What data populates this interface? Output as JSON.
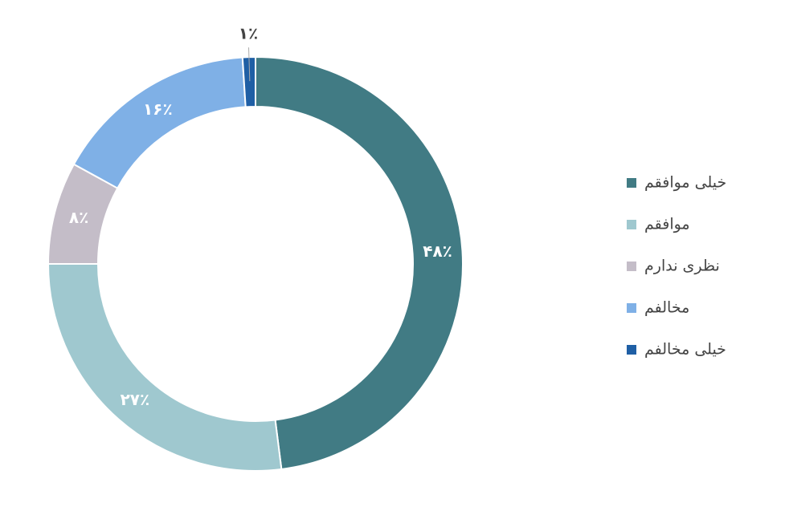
{
  "chart_data": {
    "type": "donut",
    "categories": [
      "خیلی موافقم",
      "موافقم",
      "نظری ندارم",
      "مخالفم",
      "خیلی مخالفم"
    ],
    "values": [
      48,
      27,
      8,
      16,
      1
    ],
    "value_labels": [
      "۴۸٪",
      "۲۷٪",
      "۸٪",
      "۱۶٪",
      "۱٪"
    ],
    "colors": [
      "#417b84",
      "#9fc8cf",
      "#c4bdc8",
      "#7fb0e6",
      "#1f5fa5"
    ],
    "legend": "right"
  }
}
